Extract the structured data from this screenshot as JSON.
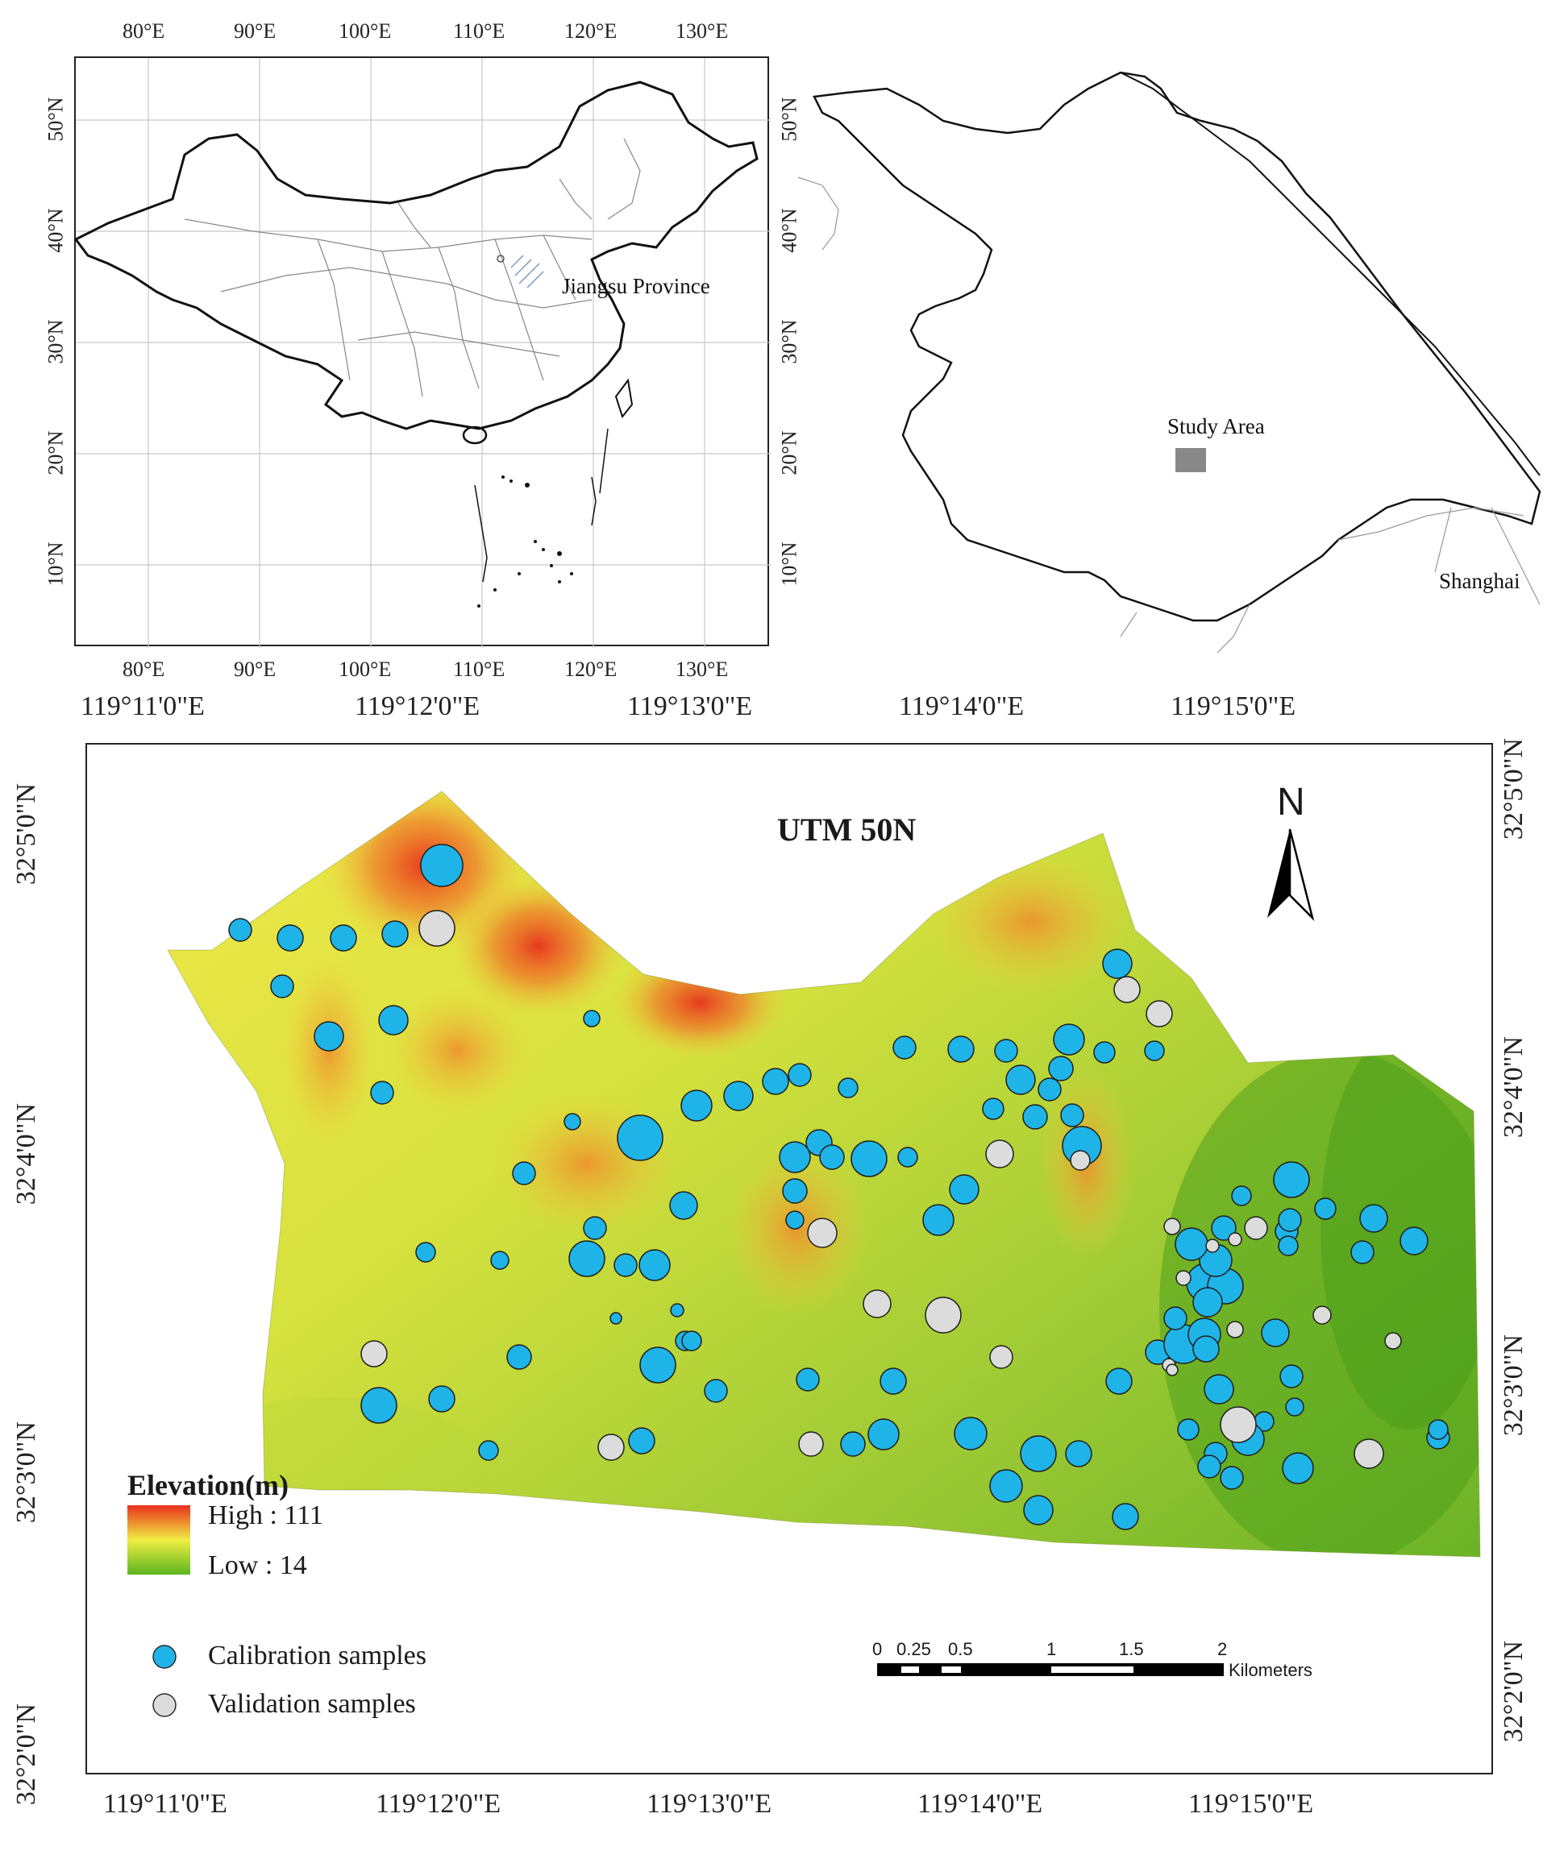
{
  "inset_china": {
    "lon_ticks": [
      "80°E",
      "90°E",
      "100°E",
      "110°E",
      "120°E",
      "130°E"
    ],
    "lat_ticks": [
      "50°N",
      "40°N",
      "30°N",
      "20°N",
      "10°N"
    ],
    "label": "Jiangsu Province"
  },
  "inset_jiangsu": {
    "study_area_label": "Study Area",
    "city_label": "Shanghai"
  },
  "main_map": {
    "projection_label": "UTM 50N",
    "north_label": "N",
    "lon_ticks": [
      "119°11'0\"E",
      "119°12'0\"E",
      "119°13'0\"E",
      "119°14'0\"E",
      "119°15'0\"E"
    ],
    "lat_ticks": [
      "32°5'0\"N",
      "32°4'0\"N",
      "32°3'0\"N",
      "32°2'0\"N"
    ],
    "legend": {
      "title": "Elevation(m)",
      "high": "High : 111",
      "low": "Low : 14",
      "calibration": "Calibration samples",
      "validation": "Validation samples",
      "high_color": "#e8301c",
      "mid_color": "#f0ee44",
      "low_color": "#5cb520",
      "calibration_color": "#1fb4e8",
      "validation_color": "#dcdcdc"
    },
    "scale_bar": {
      "labels": [
        "0",
        "0.25",
        "0.5",
        "1",
        "1.5",
        "2"
      ],
      "unit": "Kilometers"
    }
  }
}
